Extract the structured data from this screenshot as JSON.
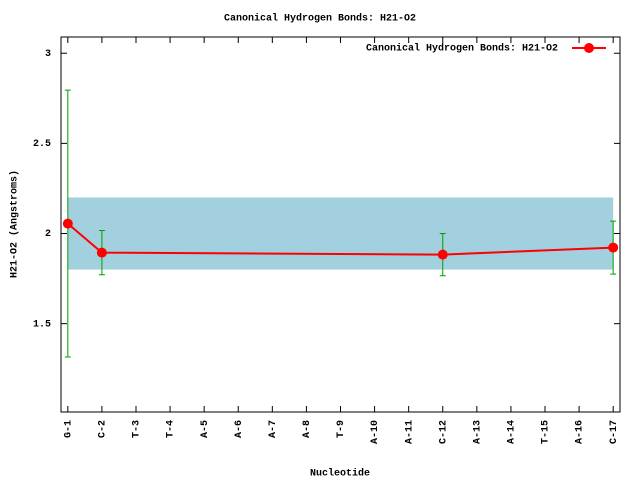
{
  "chart_data": {
    "type": "line",
    "title": "Canonical Hydrogen Bonds: H21-O2",
    "xlabel": "Nucleotide",
    "ylabel": "H21-O2 (Angstroms)",
    "x": [
      1,
      2,
      12,
      17
    ],
    "series": [
      {
        "name": "Canonical Hydrogen Bonds: H21-O2",
        "color": "#ff0000",
        "error_color": "#00a000",
        "values": [
          2.055,
          1.894,
          1.883,
          1.922
        ],
        "errors": [
          0.74,
          0.123,
          0.117,
          0.147
        ]
      }
    ],
    "band": {
      "ylim": [
        1.8,
        2.2
      ],
      "xlim": [
        1,
        17
      ],
      "color": "#a2d0de"
    },
    "xlim": [
      0.8,
      17.2
    ],
    "xticks": [
      {
        "value": 1,
        "label": "G-1"
      },
      {
        "value": 2,
        "label": "C-2"
      },
      {
        "value": 3,
        "label": "T-3"
      },
      {
        "value": 4,
        "label": "T-4"
      },
      {
        "value": 5,
        "label": "A-5"
      },
      {
        "value": 6,
        "label": "A-6"
      },
      {
        "value": 7,
        "label": "A-7"
      },
      {
        "value": 8,
        "label": "A-8"
      },
      {
        "value": 9,
        "label": "T-9"
      },
      {
        "value": 10,
        "label": "A-10"
      },
      {
        "value": 11,
        "label": "A-11"
      },
      {
        "value": 12,
        "label": "C-12"
      },
      {
        "value": 13,
        "label": "A-13"
      },
      {
        "value": 14,
        "label": "A-14"
      },
      {
        "value": 15,
        "label": "T-15"
      },
      {
        "value": 16,
        "label": "A-16"
      },
      {
        "value": 17,
        "label": "C-17"
      }
    ],
    "ylim": [
      1.01,
      3.09
    ],
    "yticks": [
      1.5,
      2,
      2.5,
      3
    ],
    "legend": "top-right"
  }
}
